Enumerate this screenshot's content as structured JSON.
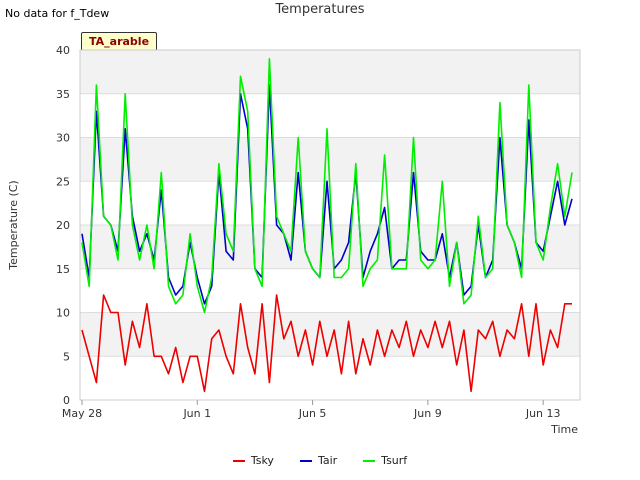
{
  "header": {
    "no_data": "No data for f_Tdew",
    "title": "Temperatures",
    "tag": "TA_arable"
  },
  "chart_data": {
    "type": "line",
    "title": "Temperatures",
    "xlabel": "Time",
    "ylabel": "Temperature (C)",
    "ylim": [
      0,
      40
    ],
    "xlim_days_label": [
      "May 28",
      "Jun 1",
      "Jun 5",
      "Jun 9",
      "Jun 13"
    ],
    "x_ticks": [
      "May 28",
      "Jun 1",
      "Jun 5",
      "Jun 9",
      "Jun 13"
    ],
    "y_ticks": [
      0,
      5,
      10,
      15,
      20,
      25,
      30,
      35,
      40
    ],
    "grid": "horizontal bands",
    "legend_position": "bottom",
    "x": [
      "May 28 00:00",
      "May 28 06:00",
      "May 28 12:00",
      "May 28 18:00",
      "May 29 00:00",
      "May 29 06:00",
      "May 29 12:00",
      "May 29 18:00",
      "May 30 00:00",
      "May 30 06:00",
      "May 30 12:00",
      "May 30 18:00",
      "May 31 00:00",
      "May 31 06:00",
      "May 31 12:00",
      "May 31 18:00",
      "Jun 1 00:00",
      "Jun 1 06:00",
      "Jun 1 12:00",
      "Jun 1 18:00",
      "Jun 2 00:00",
      "Jun 2 06:00",
      "Jun 2 12:00",
      "Jun 2 18:00",
      "Jun 3 00:00",
      "Jun 3 06:00",
      "Jun 3 12:00",
      "Jun 3 18:00",
      "Jun 4 00:00",
      "Jun 4 06:00",
      "Jun 4 12:00",
      "Jun 4 18:00",
      "Jun 5 00:00",
      "Jun 5 06:00",
      "Jun 5 12:00",
      "Jun 5 18:00",
      "Jun 6 00:00",
      "Jun 6 06:00",
      "Jun 6 12:00",
      "Jun 6 18:00",
      "Jun 7 00:00",
      "Jun 7 06:00",
      "Jun 7 12:00",
      "Jun 7 18:00",
      "Jun 8 00:00",
      "Jun 8 06:00",
      "Jun 8 12:00",
      "Jun 8 18:00",
      "Jun 9 00:00",
      "Jun 9 06:00",
      "Jun 9 12:00",
      "Jun 9 18:00",
      "Jun 10 00:00",
      "Jun 10 06:00",
      "Jun 10 12:00",
      "Jun 10 18:00",
      "Jun 11 00:00",
      "Jun 11 06:00",
      "Jun 11 12:00",
      "Jun 11 18:00",
      "Jun 12 00:00",
      "Jun 12 06:00",
      "Jun 12 12:00",
      "Jun 12 18:00",
      "Jun 13 00:00",
      "Jun 13 06:00",
      "Jun 13 12:00",
      "Jun 13 18:00",
      "Jun 14 00:00"
    ],
    "series": [
      {
        "name": "Tsky",
        "color": "#ee0000",
        "values": [
          8,
          5,
          2,
          12,
          10,
          10,
          4,
          9,
          6,
          11,
          5,
          5,
          3,
          6,
          2,
          5,
          5,
          1,
          7,
          8,
          5,
          3,
          11,
          6,
          3,
          11,
          2,
          12,
          7,
          9,
          5,
          8,
          4,
          9,
          5,
          8,
          3,
          9,
          3,
          7,
          4,
          8,
          5,
          8,
          6,
          9,
          5,
          8,
          6,
          9,
          6,
          9,
          4,
          8,
          1,
          8,
          7,
          9,
          5,
          8,
          7,
          11,
          5,
          11,
          4,
          8,
          6,
          11,
          11
        ]
      },
      {
        "name": "Tair",
        "color": "#0000cc",
        "values": [
          19,
          14,
          33,
          21,
          20,
          17,
          31,
          21,
          17,
          19,
          16,
          24,
          14,
          12,
          13,
          18,
          14,
          11,
          13,
          26,
          17,
          16,
          35,
          31,
          15,
          14,
          36,
          20,
          19,
          16,
          26,
          17,
          15,
          14,
          25,
          15,
          16,
          18,
          26,
          14,
          17,
          19,
          22,
          15,
          16,
          16,
          26,
          17,
          16,
          16,
          19,
          14,
          18,
          12,
          13,
          20,
          14,
          16,
          30,
          20,
          18,
          15,
          32,
          18,
          17,
          21,
          25,
          20,
          23
        ]
      },
      {
        "name": "Tsurf",
        "color": "#00ee00",
        "values": [
          18,
          13,
          36,
          21,
          20,
          16,
          35,
          20,
          16,
          20,
          15,
          26,
          13,
          11,
          12,
          19,
          13,
          10,
          14,
          27,
          19,
          17,
          37,
          33,
          15,
          13,
          39,
          21,
          19,
          17,
          30,
          17,
          15,
          14,
          31,
          14,
          14,
          15,
          27,
          13,
          15,
          16,
          28,
          15,
          15,
          15,
          30,
          16,
          15,
          16,
          25,
          13,
          18,
          11,
          12,
          21,
          14,
          15,
          34,
          20,
          18,
          14,
          36,
          18,
          16,
          22,
          27,
          21,
          26
        ]
      }
    ]
  }
}
